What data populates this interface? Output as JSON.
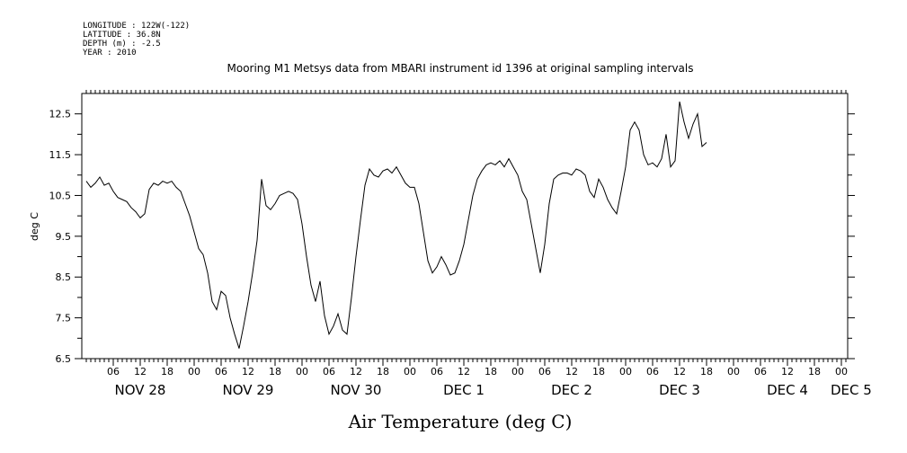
{
  "header": {
    "longitude": "LONGITUDE : 122W(-122)",
    "latitude": "LATITUDE : 36.8N",
    "depth": "DEPTH (m) : -2.5",
    "year": "YEAR : 2010"
  },
  "chart_data": {
    "type": "line",
    "title": "Mooring M1 Metsys data from MBARI instrument id 1396 at original sampling intervals",
    "xlabel": "Air Temperature (deg C)",
    "ylabel": "deg C",
    "ylim": [
      6.5,
      13.0
    ],
    "xlim_hours": [
      0,
      140
    ],
    "y_ticks": [
      "6.5",
      "7.5",
      "8.5",
      "9.5",
      "10.5",
      "11.5",
      "12.5"
    ],
    "x_hour_labels": [
      "06",
      "12",
      "18",
      "00",
      "06",
      "12",
      "18",
      "00",
      "06",
      "12",
      "18",
      "00",
      "06",
      "12",
      "18",
      "00",
      "06",
      "12",
      "18",
      "00",
      "06",
      "12",
      "18",
      "00",
      "06",
      "12",
      "18",
      "00"
    ],
    "x_day_labels": [
      "NOV 28",
      "NOV 29",
      "NOV 30",
      "DEC 1",
      "DEC 2",
      "DEC 3",
      "DEC 4",
      "DEC 5"
    ],
    "grid": false,
    "series": [
      {
        "x_hours": [
          0,
          1,
          2,
          3,
          4,
          5,
          6,
          7,
          8,
          9,
          10,
          11,
          12,
          13,
          14,
          15,
          16,
          17,
          18,
          19,
          20,
          21,
          22,
          23,
          24,
          25,
          26,
          27,
          28,
          29,
          30,
          31,
          32,
          33,
          34,
          35,
          36,
          37,
          38,
          39,
          40,
          41,
          42,
          43,
          44,
          45,
          46,
          47,
          48,
          49,
          50,
          51,
          52,
          53,
          54,
          55,
          56,
          57,
          58,
          59,
          60,
          61,
          62,
          63,
          64,
          65,
          66,
          67,
          68,
          69,
          70,
          71,
          72,
          73,
          74,
          75,
          76,
          77,
          78,
          79,
          80,
          81,
          82,
          83,
          84,
          85,
          86,
          87,
          88,
          89,
          90,
          91,
          92,
          93,
          94,
          95,
          96,
          97,
          98,
          99,
          100,
          101,
          102,
          103,
          104,
          105,
          106,
          107,
          108,
          109,
          110,
          111,
          112,
          113,
          114,
          115,
          116,
          117,
          118,
          119,
          120,
          121,
          122,
          123,
          124,
          125,
          126,
          127,
          128,
          129,
          130,
          131,
          132,
          133,
          134,
          135,
          136,
          137,
          138
        ],
        "values": [
          10.85,
          10.7,
          10.8,
          10.95,
          10.75,
          10.8,
          10.6,
          10.45,
          10.4,
          10.35,
          10.2,
          10.1,
          9.95,
          10.05,
          10.65,
          10.8,
          10.75,
          10.85,
          10.8,
          10.85,
          10.7,
          10.6,
          10.3,
          10.0,
          9.6,
          9.2,
          9.05,
          8.6,
          7.9,
          7.7,
          8.15,
          8.05,
          7.5,
          7.1,
          6.75,
          7.3,
          7.9,
          8.6,
          9.4,
          10.9,
          10.25,
          10.15,
          10.3,
          10.5,
          10.55,
          10.6,
          10.55,
          10.4,
          9.8,
          9.0,
          8.3,
          7.9,
          8.4,
          7.55,
          7.1,
          7.3,
          7.6,
          7.2,
          7.1,
          8.0,
          9.0,
          9.9,
          10.75,
          11.15,
          11.0,
          10.95,
          11.1,
          11.15,
          11.05,
          11.2,
          11.0,
          10.8,
          10.7,
          10.7,
          10.3,
          9.6,
          8.9,
          8.6,
          8.75,
          9.0,
          8.8,
          8.55,
          8.6,
          8.9,
          9.3,
          9.9,
          10.5,
          10.9,
          11.1,
          11.25,
          11.3,
          11.25,
          11.35,
          11.2,
          11.4,
          11.2,
          11.0,
          10.6,
          10.4,
          9.8,
          9.2,
          8.6,
          9.3,
          10.3,
          10.9,
          11.0,
          11.05,
          11.05,
          11.0,
          11.15,
          11.1,
          11.0,
          10.6,
          10.45,
          10.9,
          10.7,
          10.4,
          10.2,
          10.05,
          10.6,
          11.2,
          12.1,
          12.3,
          12.1,
          11.5,
          11.25,
          11.3,
          11.2,
          11.4,
          12.0,
          11.2,
          11.35,
          12.8,
          12.3,
          11.9,
          12.25,
          12.5,
          11.7,
          11.8
        ]
      }
    ]
  }
}
